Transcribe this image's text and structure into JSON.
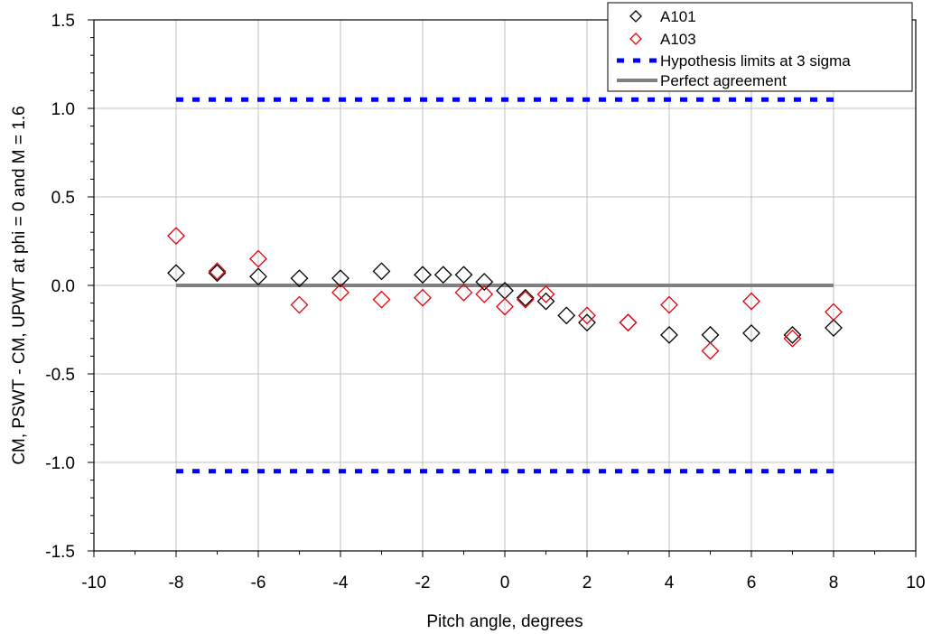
{
  "chart_data": {
    "type": "scatter",
    "xlabel": "Pitch angle, degrees",
    "ylabel": "CM, PSWT - CM, UPWT at phi = 0 and M = 1.6",
    "xlim": [
      -10,
      10
    ],
    "ylim": [
      -1.5,
      1.5
    ],
    "x_ticks": [
      -10,
      -8,
      -6,
      -4,
      -2,
      0,
      2,
      4,
      6,
      8,
      10
    ],
    "x_tick_labels": [
      "-10",
      "-8",
      "-6",
      "-4",
      "-2",
      "0",
      "2",
      "4",
      "6",
      "8",
      "10"
    ],
    "y_ticks": [
      -1.5,
      -1.0,
      -0.5,
      0.0,
      0.5,
      1.0,
      1.5
    ],
    "y_tick_labels": [
      "-1.5",
      "-1.0",
      "-0.5",
      "0.0",
      "0.5",
      "1.0",
      "1.5"
    ],
    "grid": true,
    "legend_position": "top-right",
    "series": [
      {
        "name": "A101",
        "kind": "marker",
        "marker": "diamond",
        "color": "#000000",
        "x": [
          -8,
          -7,
          -6,
          -5,
          -4,
          -3,
          -2,
          -1.5,
          -1,
          -0.5,
          0,
          0.5,
          1,
          1.5,
          2,
          3,
          4,
          5,
          6,
          7,
          8
        ],
        "y": [
          0.07,
          0.07,
          0.05,
          0.04,
          0.04,
          0.08,
          0.06,
          0.06,
          0.06,
          0.02,
          -0.03,
          -0.07,
          -0.09,
          -0.17,
          -0.21,
          -0.21,
          -0.28,
          -0.28,
          -0.27,
          -0.28,
          -0.24
        ]
      },
      {
        "name": "A103",
        "kind": "marker",
        "marker": "diamond",
        "color": "#e8000b",
        "x": [
          -8,
          -7,
          -6,
          -5,
          -4,
          -3,
          -2,
          -1,
          -0.5,
          0,
          0.5,
          1,
          2,
          3,
          4,
          5,
          6,
          7,
          8
        ],
        "y": [
          0.28,
          0.08,
          0.15,
          -0.11,
          -0.04,
          -0.08,
          -0.07,
          -0.04,
          -0.05,
          -0.12,
          -0.08,
          -0.05,
          -0.17,
          -0.21,
          -0.11,
          -0.37,
          -0.09,
          -0.3,
          -0.15
        ]
      },
      {
        "name": "Hypothesis limits at 3 sigma",
        "kind": "dashed-line",
        "color": "#0000ff",
        "x": [
          -8,
          8
        ],
        "y_upper": [
          1.05,
          1.05
        ],
        "y_lower": [
          -1.05,
          -1.05
        ]
      },
      {
        "name": "Perfect agreement",
        "kind": "solid-line",
        "color": "#808080",
        "x": [
          -8,
          8
        ],
        "y": [
          0,
          0
        ]
      }
    ]
  }
}
